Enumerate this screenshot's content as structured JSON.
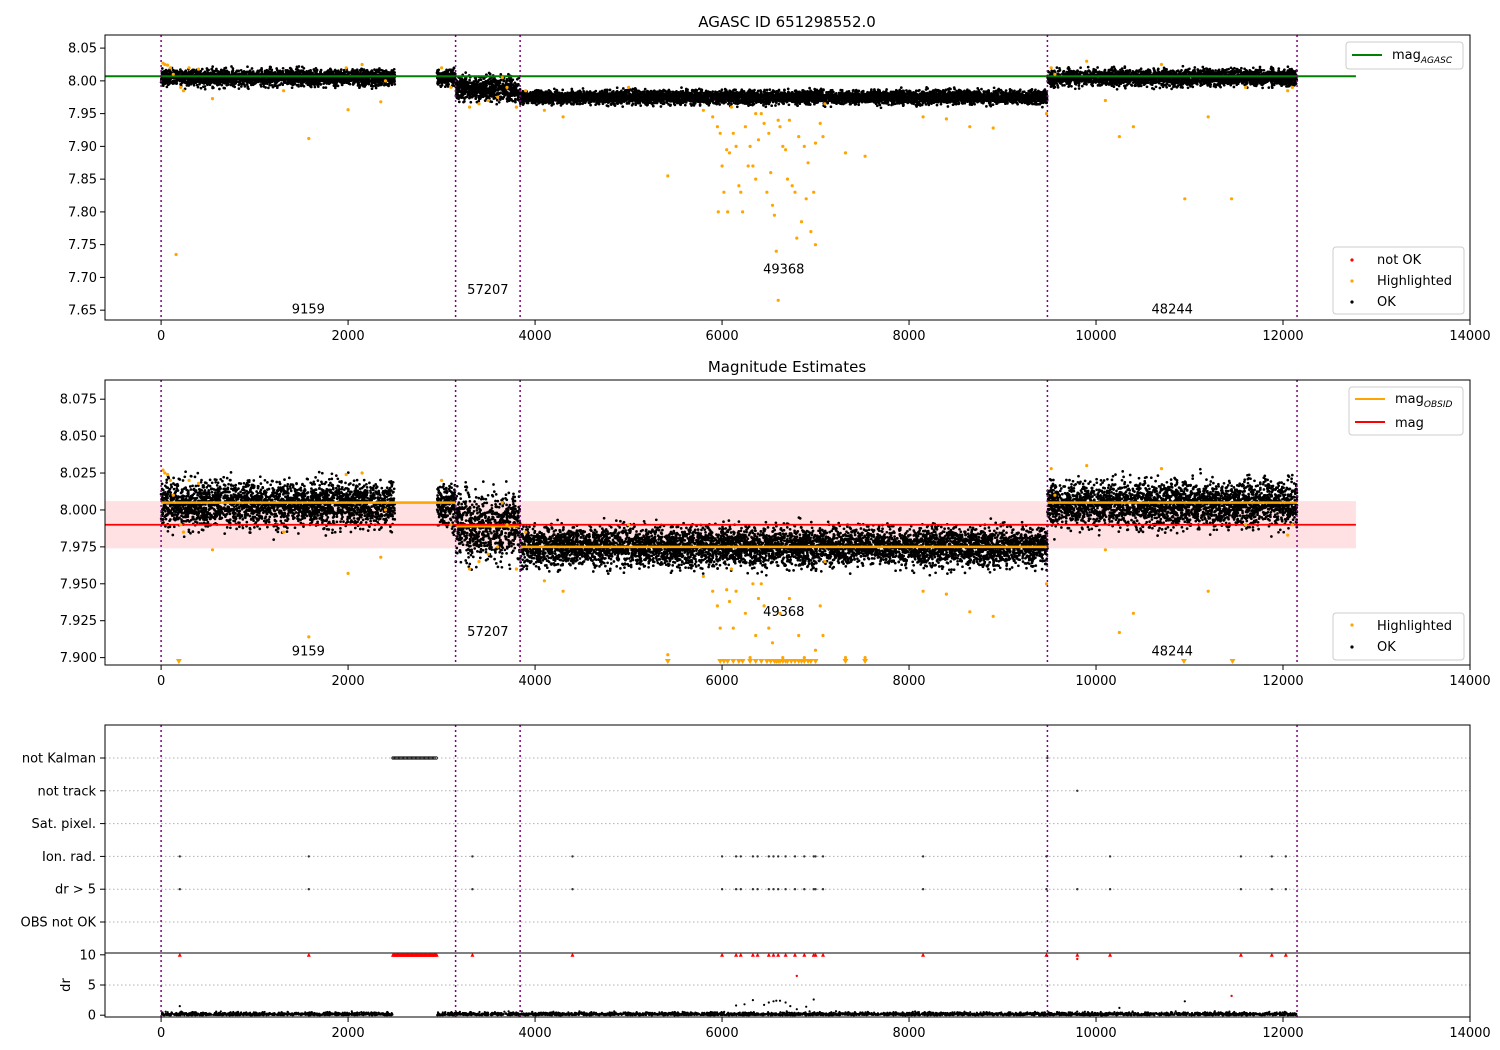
{
  "figure": {
    "title": "AGASC ID 651298552.0",
    "colors": {
      "ok": "#000000",
      "highlighted": "#ffa500",
      "not_ok": "#ff0000",
      "mag_agasc_line": "#008000",
      "mag_obsid_line": "#ffa500",
      "mag_line": "#ff0000",
      "mag_band": "#ffc8cc",
      "obs_boundary": "#800080"
    }
  },
  "chart_data": [
    {
      "type": "scatter",
      "title": "AGASC ID 651298552.0",
      "xlim": [
        -600,
        14000
      ],
      "ylim": [
        7.635,
        8.07
      ],
      "xticks": [
        0,
        2000,
        4000,
        6000,
        8000,
        10000,
        12000,
        14000
      ],
      "yticks": [
        7.65,
        7.7,
        7.75,
        7.8,
        7.85,
        7.9,
        7.95,
        8.0,
        8.05
      ],
      "ytick_labels": [
        "7.65",
        "7.70",
        "7.75",
        "7.80",
        "7.85",
        "7.90",
        "7.95",
        "8.00",
        "8.05"
      ],
      "obs_boundaries": [
        0,
        3150,
        3840,
        9480,
        12150
      ],
      "obsid_labels": [
        {
          "text": "9159",
          "x": 1575,
          "y": 7.645
        },
        {
          "text": "57207",
          "x": 3495,
          "y": 7.675
        },
        {
          "text": "49368",
          "x": 6660,
          "y": 7.706
        },
        {
          "text": "48244",
          "x": 10815,
          "y": 7.645
        }
      ],
      "mag_agasc": {
        "value": 8.007,
        "x_range": [
          -600,
          12780
        ]
      },
      "legend": {
        "upper_right": [
          "mag_AGASC"
        ],
        "lower_right": [
          "not OK",
          "Highlighted",
          "OK"
        ]
      },
      "ok_bands": [
        {
          "x": [
            0,
            2500
          ],
          "center": 8.005,
          "spread": 0.006
        },
        {
          "x": [
            2950,
            3150
          ],
          "center": 8.004,
          "spread": 0.006
        },
        {
          "x": [
            3150,
            3840
          ],
          "center": 7.988,
          "spread": 0.009
        },
        {
          "x": [
            3840,
            9480
          ],
          "center": 7.975,
          "spread": 0.005
        },
        {
          "x": [
            9480,
            12150
          ],
          "center": 8.005,
          "spread": 0.006
        }
      ],
      "highlighted_points": [
        [
          20,
          8.027
        ],
        [
          40,
          8.025
        ],
        [
          70,
          8.024
        ],
        [
          100,
          8.02
        ],
        [
          130,
          8.01
        ],
        [
          210,
          7.99
        ],
        [
          240,
          7.985
        ],
        [
          300,
          8.02
        ],
        [
          400,
          8.018
        ],
        [
          550,
          7.973
        ],
        [
          160,
          7.735
        ],
        [
          1580,
          7.912
        ],
        [
          1310,
          7.985
        ],
        [
          1980,
          8.02
        ],
        [
          2000,
          7.956
        ],
        [
          2350,
          7.968
        ],
        [
          2150,
          8.025
        ],
        [
          2400,
          8.0
        ],
        [
          3000,
          8.02
        ],
        [
          3100,
          7.99
        ],
        [
          3300,
          7.96
        ],
        [
          3400,
          7.965
        ],
        [
          3500,
          7.97
        ],
        [
          3650,
          8.005
        ],
        [
          3600,
          7.975
        ],
        [
          3700,
          7.99
        ],
        [
          3800,
          7.96
        ],
        [
          3900,
          7.985
        ],
        [
          4300,
          7.945
        ],
        [
          4100,
          7.955
        ],
        [
          5000,
          7.99
        ],
        [
          5420,
          7.855
        ],
        [
          5800,
          7.955
        ],
        [
          5900,
          7.945
        ],
        [
          5950,
          7.93
        ],
        [
          5980,
          7.92
        ],
        [
          6000,
          7.87
        ],
        [
          6020,
          7.83
        ],
        [
          6050,
          7.895
        ],
        [
          6080,
          7.89
        ],
        [
          6100,
          7.96
        ],
        [
          6120,
          7.92
        ],
        [
          6150,
          7.9
        ],
        [
          6180,
          7.84
        ],
        [
          6200,
          7.83
        ],
        [
          6220,
          7.8
        ],
        [
          6250,
          7.93
        ],
        [
          6280,
          7.87
        ],
        [
          6300,
          7.9
        ],
        [
          6330,
          7.87
        ],
        [
          6360,
          7.95
        ],
        [
          6390,
          7.91
        ],
        [
          6420,
          7.95
        ],
        [
          6450,
          7.935
        ],
        [
          6480,
          7.83
        ],
        [
          6500,
          7.92
        ],
        [
          6520,
          7.86
        ],
        [
          6540,
          7.81
        ],
        [
          6560,
          7.795
        ],
        [
          6580,
          7.74
        ],
        [
          6600,
          7.665
        ],
        [
          6620,
          7.93
        ],
        [
          6650,
          7.9
        ],
        [
          6680,
          7.895
        ],
        [
          6700,
          7.85
        ],
        [
          6720,
          7.94
        ],
        [
          6750,
          7.84
        ],
        [
          6780,
          7.83
        ],
        [
          6800,
          7.76
        ],
        [
          6820,
          7.915
        ],
        [
          6850,
          7.785
        ],
        [
          6880,
          7.9
        ],
        [
          6900,
          7.82
        ],
        [
          6920,
          7.875
        ],
        [
          6950,
          7.77
        ],
        [
          6980,
          7.83
        ],
        [
          7000,
          7.905
        ],
        [
          7050,
          7.935
        ],
        [
          7080,
          7.915
        ],
        [
          7100,
          7.965
        ],
        [
          7320,
          7.89
        ],
        [
          7530,
          7.885
        ],
        [
          7000,
          7.75
        ],
        [
          6600,
          7.94
        ],
        [
          5960,
          7.8
        ],
        [
          6060,
          7.8
        ],
        [
          6360,
          7.85
        ],
        [
          8150,
          7.945
        ],
        [
          8400,
          7.942
        ],
        [
          8650,
          7.93
        ],
        [
          8900,
          7.928
        ],
        [
          9470,
          7.95
        ],
        [
          9520,
          8.02
        ],
        [
          9560,
          8.01
        ],
        [
          9900,
          8.03
        ],
        [
          10100,
          7.97
        ],
        [
          10250,
          7.915
        ],
        [
          10400,
          7.93
        ],
        [
          10700,
          8.025
        ],
        [
          10950,
          7.82
        ],
        [
          11200,
          7.945
        ],
        [
          11450,
          7.82
        ],
        [
          11600,
          7.99
        ],
        [
          12050,
          7.985
        ],
        [
          12100,
          7.99
        ]
      ]
    },
    {
      "type": "scatter",
      "title": "Magnitude Estimates",
      "xlim": [
        -600,
        14000
      ],
      "ylim": [
        7.895,
        8.088
      ],
      "xticks": [
        0,
        2000,
        4000,
        6000,
        8000,
        10000,
        12000,
        14000
      ],
      "yticks": [
        7.9,
        7.925,
        7.95,
        7.975,
        8.0,
        8.025,
        8.05,
        8.075
      ],
      "ytick_labels": [
        "7.900",
        "7.925",
        "7.950",
        "7.975",
        "8.000",
        "8.025",
        "8.050",
        "8.075"
      ],
      "obs_boundaries": [
        0,
        3150,
        3840,
        9480,
        12150
      ],
      "obsid_labels": [
        {
          "text": "9159",
          "x": 1575,
          "y": 7.9015
        },
        {
          "text": "57207",
          "x": 3495,
          "y": 7.9147
        },
        {
          "text": "49368",
          "x": 6660,
          "y": 7.9281
        },
        {
          "text": "48244",
          "x": 10815,
          "y": 7.9015
        }
      ],
      "mag": {
        "value": 7.99,
        "band": [
          7.974,
          8.006
        ],
        "x_range": [
          -600,
          12780
        ]
      },
      "mag_obsid": [
        {
          "x": [
            0,
            3150
          ],
          "value": 8.005
        },
        {
          "x": [
            3150,
            3840
          ],
          "value": 7.989
        },
        {
          "x": [
            3840,
            9480
          ],
          "value": 7.975
        },
        {
          "x": [
            9480,
            12150
          ],
          "value": 8.005
        }
      ],
      "legend": {
        "upper_right": [
          "mag_OBSID",
          "mag"
        ],
        "lower_right": [
          "Highlighted",
          "OK"
        ]
      },
      "ok_bands": [
        {
          "x": [
            0,
            2500
          ],
          "center": 8.004,
          "spread": 0.0075
        },
        {
          "x": [
            2950,
            3150
          ],
          "center": 8.003,
          "spread": 0.0075
        },
        {
          "x": [
            3150,
            3840
          ],
          "center": 7.988,
          "spread": 0.011
        },
        {
          "x": [
            3840,
            9480
          ],
          "center": 7.975,
          "spread": 0.0065
        },
        {
          "x": [
            9480,
            12150
          ],
          "center": 8.004,
          "spread": 0.0075
        }
      ],
      "highlighted_points": [
        [
          20,
          8.027
        ],
        [
          40,
          8.025
        ],
        [
          70,
          8.024
        ],
        [
          100,
          8.02
        ],
        [
          130,
          8.01
        ],
        [
          210,
          7.99
        ],
        [
          240,
          7.985
        ],
        [
          300,
          8.02
        ],
        [
          400,
          8.018
        ],
        [
          550,
          7.973
        ],
        [
          1580,
          7.914
        ],
        [
          1310,
          7.985
        ],
        [
          1980,
          8.024
        ],
        [
          2000,
          7.957
        ],
        [
          2350,
          7.968
        ],
        [
          2150,
          8.025
        ],
        [
          2400,
          8.0
        ],
        [
          3000,
          8.02
        ],
        [
          3100,
          7.99
        ],
        [
          3300,
          7.96
        ],
        [
          3400,
          7.965
        ],
        [
          3500,
          7.97
        ],
        [
          3650,
          8.005
        ],
        [
          3600,
          7.975
        ],
        [
          3700,
          7.99
        ],
        [
          3800,
          7.96
        ],
        [
          3900,
          7.985
        ],
        [
          4300,
          7.945
        ],
        [
          4100,
          7.952
        ],
        [
          5000,
          7.99
        ],
        [
          5420,
          7.902
        ],
        [
          5800,
          7.955
        ],
        [
          5900,
          7.945
        ],
        [
          5950,
          7.935
        ],
        [
          5980,
          7.92
        ],
        [
          6050,
          7.946
        ],
        [
          6080,
          7.938
        ],
        [
          6100,
          7.96
        ],
        [
          6120,
          7.92
        ],
        [
          6150,
          7.945
        ],
        [
          6250,
          7.93
        ],
        [
          6300,
          7.9
        ],
        [
          6330,
          7.95
        ],
        [
          6360,
          7.915
        ],
        [
          6390,
          7.94
        ],
        [
          6420,
          7.95
        ],
        [
          6450,
          7.935
        ],
        [
          6500,
          7.92
        ],
        [
          6540,
          7.91
        ],
        [
          6620,
          7.93
        ],
        [
          6650,
          7.9
        ],
        [
          6720,
          7.94
        ],
        [
          6820,
          7.915
        ],
        [
          6880,
          7.9
        ],
        [
          7000,
          7.905
        ],
        [
          7050,
          7.935
        ],
        [
          7080,
          7.915
        ],
        [
          7100,
          7.965
        ],
        [
          7320,
          7.9
        ],
        [
          7530,
          7.9
        ],
        [
          8150,
          7.945
        ],
        [
          8400,
          7.943
        ],
        [
          8650,
          7.931
        ],
        [
          8900,
          7.928
        ],
        [
          9470,
          7.95
        ],
        [
          9520,
          8.028
        ],
        [
          9560,
          8.01
        ],
        [
          9900,
          8.03
        ],
        [
          10100,
          7.973
        ],
        [
          10250,
          7.917
        ],
        [
          10400,
          7.93
        ],
        [
          10700,
          8.028
        ],
        [
          11200,
          7.945
        ],
        [
          11600,
          7.99
        ],
        [
          12050,
          7.983
        ],
        [
          12100,
          7.99
        ]
      ],
      "clipped_below": [
        190,
        5420,
        5980,
        6020,
        6060,
        6120,
        6180,
        6220,
        6300,
        6360,
        6420,
        6480,
        6520,
        6560,
        6580,
        6600,
        6620,
        6650,
        6680,
        6700,
        6740,
        6780,
        6820,
        6850,
        6880,
        6920,
        6950,
        7000,
        7320,
        7530,
        10940,
        11460
      ]
    },
    {
      "type": "scatter",
      "title": "",
      "xlim": [
        -600,
        14000
      ],
      "xticks": [
        0,
        2000,
        4000,
        6000,
        8000,
        10000,
        12000,
        14000
      ],
      "obs_boundaries": [
        0,
        3150,
        3840,
        9480,
        12150
      ],
      "flag_rows": [
        "not Kalman",
        "not track",
        "Sat. pixel.",
        "Ion. rad.",
        "dr > 5",
        "OBS not OK"
      ],
      "flags": {
        "not Kalman": {
          "ranges": [
            [
              2480,
              2950
            ]
          ],
          "points": [
            9480
          ]
        },
        "not track": {
          "ranges": [],
          "points": [
            9800
          ]
        },
        "Sat. pixel.": {
          "ranges": [],
          "points": []
        },
        "Ion. rad.": {
          "ranges": [],
          "points": [
            200,
            1580,
            3330,
            4400,
            6000,
            6150,
            6200,
            6330,
            6380,
            6500,
            6550,
            6600,
            6680,
            6780,
            6880,
            6980,
            7000,
            7080,
            8150,
            9470,
            10150,
            11550,
            11880,
            12030
          ]
        },
        "dr > 5": {
          "ranges": [],
          "points": [
            200,
            1580,
            3330,
            4400,
            6000,
            6150,
            6200,
            6330,
            6380,
            6500,
            6550,
            6600,
            6680,
            6780,
            6880,
            6980,
            7000,
            7080,
            8150,
            9470,
            9800,
            10150,
            11550,
            11880,
            12030
          ]
        },
        "OBS not OK": {
          "ranges": [],
          "points": []
        }
      },
      "dr": {
        "ylabel": "dr",
        "ylim": [
          -0.3,
          10.3
        ],
        "yticks": [
          0,
          5,
          10
        ],
        "ytick_labels": [
          "0",
          "5",
          "10"
        ],
        "baseline_ranges": [
          [
            0,
            2480
          ],
          [
            2950,
            12150
          ]
        ],
        "outliers": [
          [
            200,
            1.5
          ],
          [
            6150,
            1.6
          ],
          [
            6240,
            1.8
          ],
          [
            6330,
            2.5
          ],
          [
            6450,
            1.7
          ],
          [
            6500,
            2.1
          ],
          [
            6550,
            2.3
          ],
          [
            6580,
            2.4
          ],
          [
            6620,
            2.4
          ],
          [
            6680,
            2.1
          ],
          [
            6730,
            1.5
          ],
          [
            6800,
            1.0
          ],
          [
            6900,
            1.4
          ],
          [
            6980,
            2.6
          ],
          [
            10250,
            1.2
          ],
          [
            10950,
            2.3
          ]
        ],
        "red_at_10": [
          200,
          1580,
          3330,
          4400,
          6000,
          6150,
          6200,
          6330,
          6380,
          6500,
          6550,
          6600,
          6680,
          6780,
          6880,
          6980,
          7000,
          7080,
          8150,
          9470,
          9800,
          10150,
          11550,
          11880,
          12030
        ],
        "red_range_at_10": [
          2480,
          2950
        ],
        "red_other": [
          [
            6800,
            6.5
          ],
          [
            9800,
            9.3
          ],
          [
            11450,
            3.2
          ]
        ]
      }
    }
  ]
}
